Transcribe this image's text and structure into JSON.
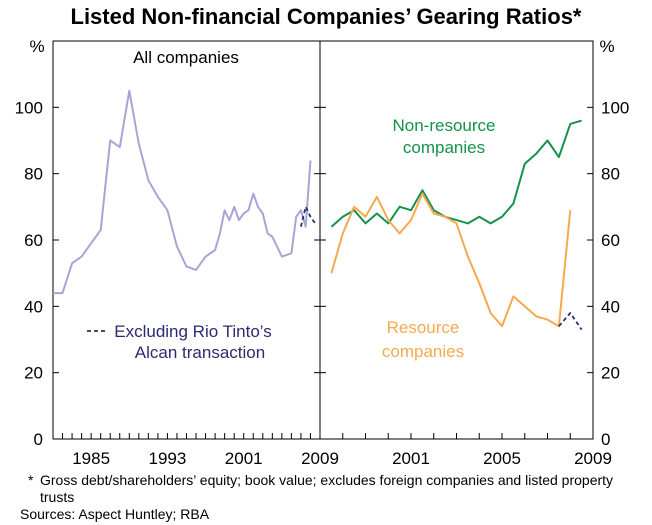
{
  "title": "Listed Non-financial Companies’ Gearing Ratios*",
  "footnote_marker": "*",
  "footnote": "Gross debt/shareholders’ equity; book value; excludes foreign companies and listed property trusts",
  "sources": "Sources: Aspect Huntley; RBA",
  "colors": {
    "all_companies": "#a6a6d6",
    "excluding_rio": "#2b2b70",
    "non_resource": "#15924a",
    "resource": "#f6a94f"
  },
  "chart_data": [
    {
      "panel": "left",
      "type": "line",
      "panel_label": "All companies",
      "ylabel_left": "%",
      "ylabel_right": "%",
      "ylim": [
        0,
        120
      ],
      "yticks": [
        0,
        20,
        40,
        60,
        80,
        100
      ],
      "xlim": [
        1981,
        2009
      ],
      "xticks": [
        1985,
        1993,
        2001,
        2009
      ],
      "xtick_labels": [
        "1985",
        "1993",
        "2001",
        "2009"
      ],
      "series": [
        {
          "name": "All companies",
          "color": "#a6a6d6",
          "style": "solid",
          "x": [
            1981,
            1982,
            1983,
            1984,
            1985,
            1986,
            1987,
            1988,
            1989,
            1990,
            1991,
            1992,
            1993,
            1994,
            1995,
            1996,
            1997,
            1998,
            1998.5,
            1999,
            1999.5,
            2000,
            2000.5,
            2001,
            2001.5,
            2002,
            2002.5,
            2003,
            2003.5,
            2004,
            2005,
            2006,
            2006.5,
            2007,
            2007.5,
            2008
          ],
          "y": [
            44,
            44,
            53,
            55,
            59,
            63,
            90,
            88,
            105,
            89,
            78,
            73,
            69,
            58,
            52,
            51,
            55,
            57,
            62,
            69,
            66,
            70,
            66,
            68,
            69,
            74,
            70,
            68,
            62,
            61,
            55,
            56,
            67,
            69,
            64,
            84
          ]
        },
        {
          "name": "Excluding Rio Tinto’s Alcan transaction",
          "color": "#2b2b70",
          "style": "dashed",
          "x": [
            2007,
            2007.5,
            2008,
            2008.5
          ],
          "y": [
            64,
            70,
            67,
            65
          ]
        }
      ],
      "legend": {
        "text_line1": "Excluding Rio Tinto’s",
        "text_line2": "Alcan transaction",
        "placement": "lower-left"
      }
    },
    {
      "panel": "right",
      "type": "line",
      "ylim": [
        0,
        120
      ],
      "xlim": [
        1997,
        2009
      ],
      "xticks": [
        2001,
        2005,
        2009
      ],
      "xtick_labels": [
        "2001",
        "2005",
        "2009"
      ],
      "series": [
        {
          "name": "Non-resource companies",
          "label_line1": "Non-resource",
          "label_line2": "companies",
          "color": "#15924a",
          "style": "solid",
          "x": [
            1997.5,
            1998,
            1998.5,
            1999,
            1999.5,
            2000,
            2000.5,
            2001,
            2001.5,
            2002,
            2002.5,
            2003,
            2003.5,
            2004,
            2004.5,
            2005,
            2005.5,
            2006,
            2006.5,
            2007,
            2007.5,
            2008,
            2008.5
          ],
          "y": [
            64,
            67,
            69,
            65,
            68,
            65,
            70,
            69,
            75,
            69,
            67,
            66,
            65,
            67,
            65,
            67,
            71,
            83,
            86,
            90,
            85,
            95,
            96
          ]
        },
        {
          "name": "Resource companies",
          "label_line1": "Resource",
          "label_line2": "companies",
          "color": "#f6a94f",
          "style": "solid",
          "x": [
            1997.5,
            1998,
            1998.5,
            1999,
            1999.5,
            2000,
            2000.5,
            2001,
            2001.5,
            2002,
            2002.5,
            2003,
            2003.5,
            2004,
            2004.5,
            2005,
            2005.5,
            2006,
            2006.5,
            2007,
            2007.5,
            2008
          ],
          "y": [
            50,
            62,
            70,
            67,
            73,
            66,
            62,
            66,
            74,
            68,
            67,
            65,
            55,
            47,
            38,
            34,
            43,
            40,
            37,
            36,
            34,
            69
          ]
        },
        {
          "name": "Resource companies excluding Rio Tinto’s Alcan transaction",
          "color": "#2b2b70",
          "style": "dashed",
          "x": [
            2007.5,
            2008,
            2008.5
          ],
          "y": [
            34,
            38,
            33
          ]
        }
      ]
    }
  ]
}
